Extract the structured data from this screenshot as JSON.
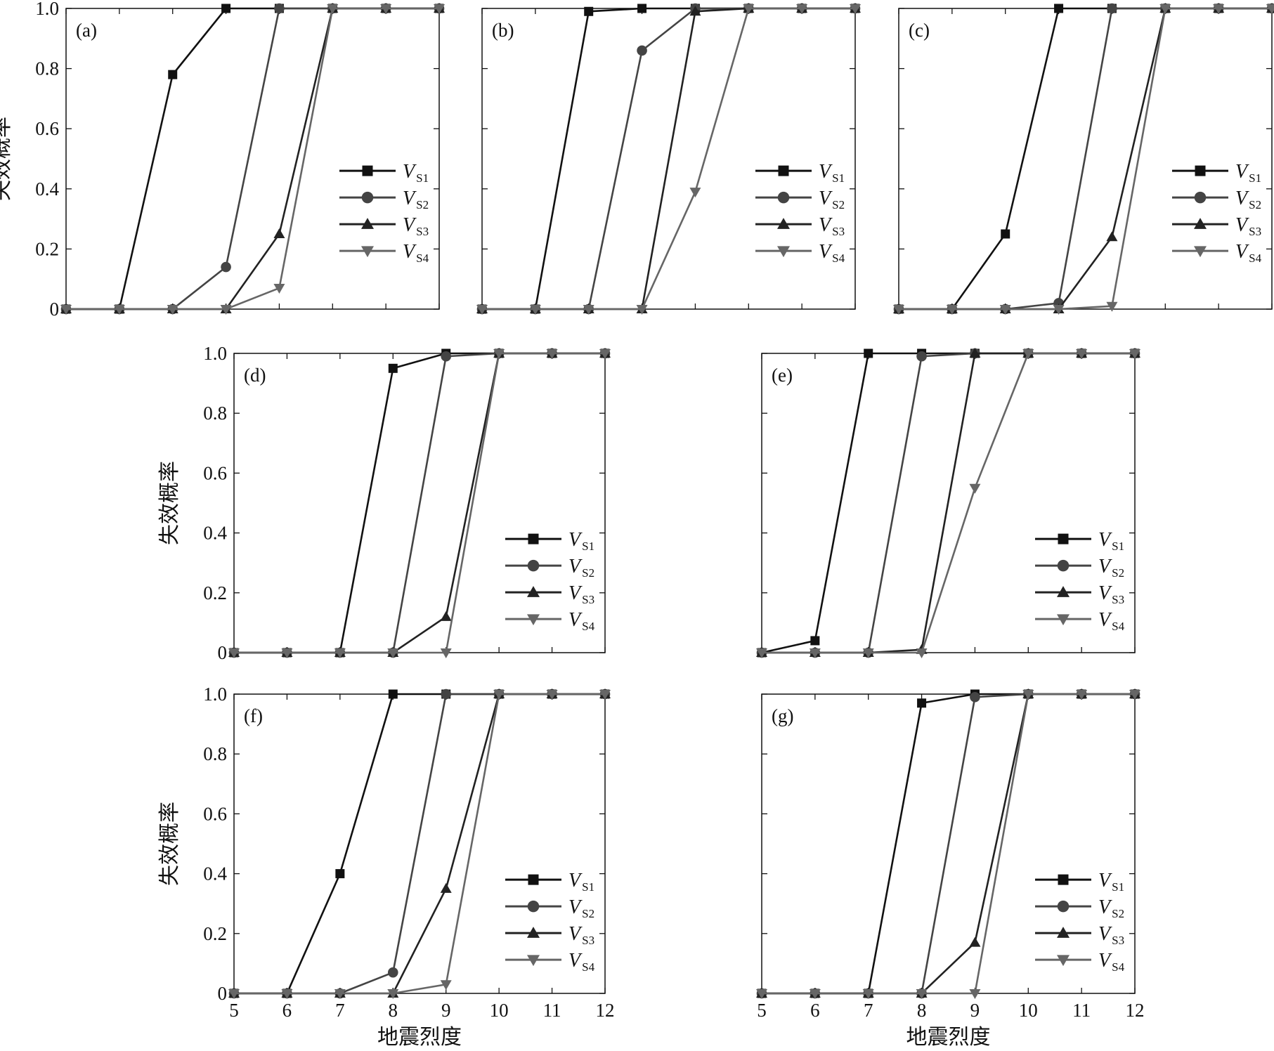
{
  "figure": {
    "background": "#ffffff",
    "series_styles": [
      {
        "color": "#111111",
        "marker": "square"
      },
      {
        "color": "#444444",
        "marker": "circle"
      },
      {
        "color": "#222222",
        "marker": "triangle-up"
      },
      {
        "color": "#666666",
        "marker": "triangle-down"
      }
    ]
  },
  "chart_data": [
    {
      "type": "line",
      "panel_label": "(a)",
      "ylabel": "失效概率",
      "xlabel": "",
      "xlim": [
        5,
        12
      ],
      "ylim": [
        0,
        1
      ],
      "x": [
        5,
        6,
        7,
        8,
        9,
        10,
        11,
        12
      ],
      "yticks": [
        "0",
        "0.2",
        "0.4",
        "0.6",
        "0.8",
        "1.0"
      ],
      "xticks": [],
      "legend": "right-middle",
      "series": [
        {
          "name_main": "V",
          "name_sub": "S1",
          "values": [
            0,
            0,
            0.78,
            1,
            1,
            1,
            1,
            1
          ]
        },
        {
          "name_main": "V",
          "name_sub": "S2",
          "values": [
            0,
            0,
            0,
            0.14,
            1,
            1,
            1,
            1
          ]
        },
        {
          "name_main": "V",
          "name_sub": "S3",
          "values": [
            0,
            0,
            0,
            0,
            0.25,
            1,
            1,
            1
          ]
        },
        {
          "name_main": "V",
          "name_sub": "S4",
          "values": [
            0,
            0,
            0,
            0,
            0.07,
            1,
            1,
            1
          ]
        }
      ]
    },
    {
      "type": "line",
      "panel_label": "(b)",
      "ylabel": "",
      "xlabel": "",
      "xlim": [
        5,
        12
      ],
      "ylim": [
        0,
        1
      ],
      "x": [
        5,
        6,
        7,
        8,
        9,
        10,
        11,
        12
      ],
      "yticks": [],
      "xticks": [],
      "legend": "right-middle",
      "series": [
        {
          "name_main": "V",
          "name_sub": "S1",
          "values": [
            0,
            0,
            0.99,
            1,
            1,
            1,
            1,
            1
          ]
        },
        {
          "name_main": "V",
          "name_sub": "S2",
          "values": [
            0,
            0,
            0,
            0.86,
            1,
            1,
            1,
            1
          ]
        },
        {
          "name_main": "V",
          "name_sub": "S3",
          "values": [
            0,
            0,
            0,
            0,
            0.99,
            1,
            1,
            1
          ]
        },
        {
          "name_main": "V",
          "name_sub": "S4",
          "values": [
            0,
            0,
            0,
            0,
            0.39,
            1,
            1,
            1
          ]
        }
      ]
    },
    {
      "type": "line",
      "panel_label": "(c)",
      "ylabel": "",
      "xlabel": "",
      "xlim": [
        5,
        12
      ],
      "ylim": [
        0,
        1
      ],
      "x": [
        5,
        6,
        7,
        8,
        9,
        10,
        11,
        12
      ],
      "yticks": [],
      "xticks": [],
      "legend": "right-middle",
      "series": [
        {
          "name_main": "V",
          "name_sub": "S1",
          "values": [
            0,
            0,
            0.25,
            1,
            1,
            1,
            1,
            1
          ]
        },
        {
          "name_main": "V",
          "name_sub": "S2",
          "values": [
            0,
            0,
            0,
            0.02,
            1,
            1,
            1,
            1
          ]
        },
        {
          "name_main": "V",
          "name_sub": "S3",
          "values": [
            0,
            0,
            0,
            0,
            0.24,
            1,
            1,
            1
          ]
        },
        {
          "name_main": "V",
          "name_sub": "S4",
          "values": [
            0,
            0,
            0,
            0,
            0.01,
            1,
            1,
            1
          ]
        }
      ]
    },
    {
      "type": "line",
      "panel_label": "(d)",
      "ylabel": "失效概率",
      "xlabel": "",
      "xlim": [
        5,
        12
      ],
      "ylim": [
        0,
        1
      ],
      "x": [
        5,
        6,
        7,
        8,
        9,
        10,
        11,
        12
      ],
      "yticks": [
        "0",
        "0.2",
        "0.4",
        "0.6",
        "0.8",
        "1.0"
      ],
      "xticks": [],
      "legend": "right-lower",
      "series": [
        {
          "name_main": "V",
          "name_sub": "S1",
          "values": [
            0,
            0,
            0,
            0.95,
            1,
            1,
            1,
            1
          ]
        },
        {
          "name_main": "V",
          "name_sub": "S2",
          "values": [
            0,
            0,
            0,
            0,
            0.99,
            1,
            1,
            1
          ]
        },
        {
          "name_main": "V",
          "name_sub": "S3",
          "values": [
            0,
            0,
            0,
            0,
            0.12,
            1,
            1,
            1
          ]
        },
        {
          "name_main": "V",
          "name_sub": "S4",
          "values": [
            0,
            0,
            0,
            0,
            0,
            1,
            1,
            1
          ]
        }
      ]
    },
    {
      "type": "line",
      "panel_label": "(e)",
      "ylabel": "",
      "xlabel": "",
      "xlim": [
        5,
        12
      ],
      "ylim": [
        0,
        1
      ],
      "x": [
        5,
        6,
        7,
        8,
        9,
        10,
        11,
        12
      ],
      "yticks": [],
      "xticks": [],
      "legend": "right-lower",
      "series": [
        {
          "name_main": "V",
          "name_sub": "S1",
          "values": [
            0,
            0.04,
            1,
            1,
            1,
            1,
            1,
            1
          ]
        },
        {
          "name_main": "V",
          "name_sub": "S2",
          "values": [
            0,
            0,
            0,
            0.99,
            1,
            1,
            1,
            1
          ]
        },
        {
          "name_main": "V",
          "name_sub": "S3",
          "values": [
            0,
            0,
            0,
            0.01,
            1,
            1,
            1,
            1
          ]
        },
        {
          "name_main": "V",
          "name_sub": "S4",
          "values": [
            0,
            0,
            0,
            0,
            0.55,
            1,
            1,
            1
          ]
        }
      ]
    },
    {
      "type": "line",
      "panel_label": "(f)",
      "ylabel": "失效概率",
      "xlabel": "地震烈度",
      "xlim": [
        5,
        12
      ],
      "ylim": [
        0,
        1
      ],
      "x": [
        5,
        6,
        7,
        8,
        9,
        10,
        11,
        12
      ],
      "yticks": [
        "0",
        "0.2",
        "0.4",
        "0.6",
        "0.8",
        "1.0"
      ],
      "xticks": [
        "5",
        "6",
        "7",
        "8",
        "9",
        "10",
        "11",
        "12"
      ],
      "legend": "right-lower",
      "series": [
        {
          "name_main": "V",
          "name_sub": "S1",
          "values": [
            0,
            0,
            0.4,
            1,
            1,
            1,
            1,
            1
          ]
        },
        {
          "name_main": "V",
          "name_sub": "S2",
          "values": [
            0,
            0,
            0,
            0.07,
            1,
            1,
            1,
            1
          ]
        },
        {
          "name_main": "V",
          "name_sub": "S3",
          "values": [
            0,
            0,
            0,
            0,
            0.35,
            1,
            1,
            1
          ]
        },
        {
          "name_main": "V",
          "name_sub": "S4",
          "values": [
            0,
            0,
            0,
            0,
            0.03,
            1,
            1,
            1
          ]
        }
      ]
    },
    {
      "type": "line",
      "panel_label": "(g)",
      "ylabel": "",
      "xlabel": "地震烈度",
      "xlim": [
        5,
        12
      ],
      "ylim": [
        0,
        1
      ],
      "x": [
        5,
        6,
        7,
        8,
        9,
        10,
        11,
        12
      ],
      "yticks": [],
      "xticks": [
        "5",
        "6",
        "7",
        "8",
        "9",
        "10",
        "11",
        "12"
      ],
      "legend": "right-lower",
      "series": [
        {
          "name_main": "V",
          "name_sub": "S1",
          "values": [
            0,
            0,
            0,
            0.97,
            1,
            1,
            1,
            1
          ]
        },
        {
          "name_main": "V",
          "name_sub": "S2",
          "values": [
            0,
            0,
            0,
            0,
            0.99,
            1,
            1,
            1
          ]
        },
        {
          "name_main": "V",
          "name_sub": "S3",
          "values": [
            0,
            0,
            0,
            0,
            0.17,
            1,
            1,
            1
          ]
        },
        {
          "name_main": "V",
          "name_sub": "S4",
          "values": [
            0,
            0,
            0,
            0,
            0,
            1,
            1,
            1
          ]
        }
      ]
    }
  ]
}
